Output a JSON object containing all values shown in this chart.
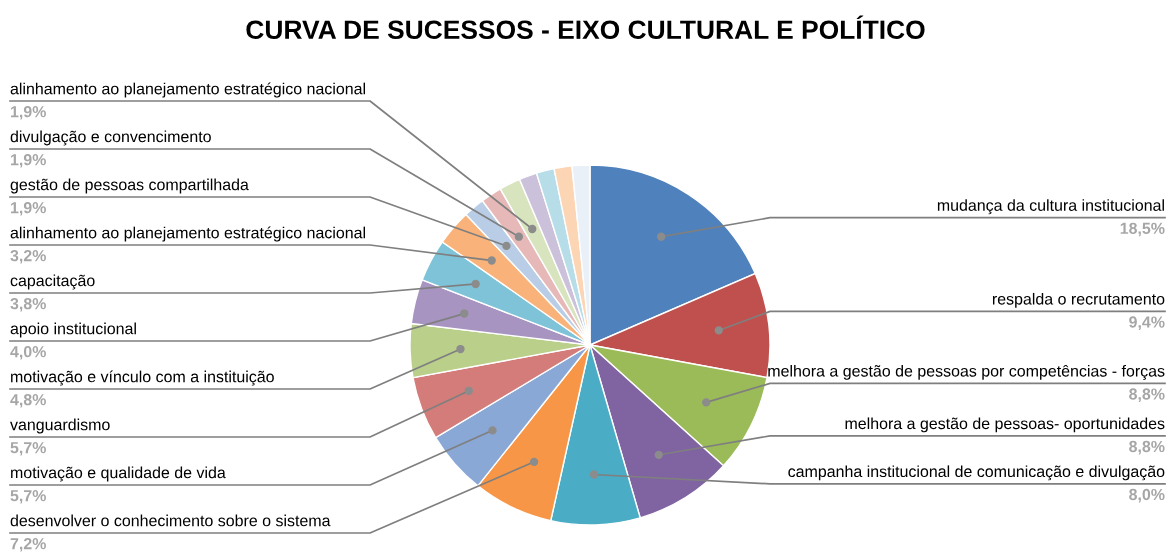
{
  "chart_data": {
    "type": "pie",
    "title": "CURVA DE SUCESSOS - EIXO CULTURAL E POLÍTICO",
    "categories": [
      "mudança da cultura institucional",
      "respalda o recrutamento",
      "melhora a gestão de pessoas por competências - forças",
      "melhora a gestão de pessoas- oportunidades",
      "campanha institucional de comunicação e divulgação",
      "desenvolver o conhecimento sobre o sistema",
      "motivação e qualidade de vida",
      "vanguardismo",
      "motivação e vínculo com a instituição",
      "apoio institucional",
      "capacitação",
      "alinhamento ao planejamento estratégico nacional",
      "gestão de pessoas compartilhada",
      "divulgação e convencimento",
      "alinhamento ao planejamento estratégico nacional",
      null,
      null,
      null,
      null
    ],
    "values": [
      18.5,
      9.4,
      8.8,
      8.8,
      8.0,
      7.2,
      5.7,
      5.7,
      4.8,
      4.0,
      3.8,
      3.2,
      1.9,
      1.9,
      1.9,
      1.6,
      1.6,
      1.6,
      1.6
    ],
    "value_labels": [
      "18,5%",
      "9,4%",
      "8,8%",
      "8,8%",
      "8,0%",
      "7,2%",
      "5,7%",
      "5,7%",
      "4,8%",
      "4,0%",
      "3,8%",
      "3,2%",
      "1,9%",
      "1,9%",
      "1,9%",
      null,
      null,
      null,
      null
    ],
    "colors": [
      "#4f81bd",
      "#c0504d",
      "#9bbb59",
      "#8064a2",
      "#4bacc6",
      "#f79646",
      "#8aa8d6",
      "#d47c7a",
      "#b9cf8a",
      "#a794c0",
      "#7fc3d8",
      "#f9b37a",
      "#b9cde6",
      "#e6b9b8",
      "#d7e4bd",
      "#ccc1da",
      "#b7dee8",
      "#fcd5b5",
      "#eaf0f8"
    ]
  }
}
